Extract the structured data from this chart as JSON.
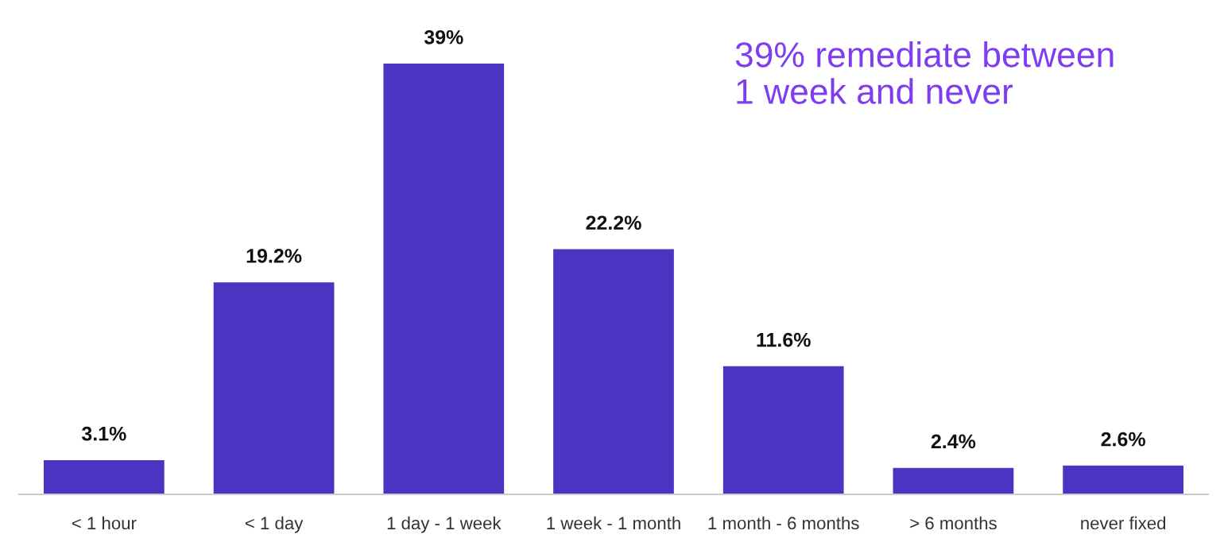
{
  "chart_data": {
    "type": "bar",
    "categories": [
      "< 1 hour",
      "< 1 day",
      "1 day - 1 week",
      "1 week - 1 month",
      "1 month - 6 months",
      "> 6 months",
      "never fixed"
    ],
    "values": [
      3.1,
      19.2,
      39,
      22.2,
      11.6,
      2.4,
      2.6
    ],
    "value_labels": [
      "3.1%",
      "19.2%",
      "39%",
      "22.2%",
      "11.6%",
      "2.4%",
      "2.6%"
    ],
    "color": "#4a35c2",
    "annotations": [
      "39% remediate between\n1 week and never"
    ],
    "grid": false,
    "legend": false
  }
}
